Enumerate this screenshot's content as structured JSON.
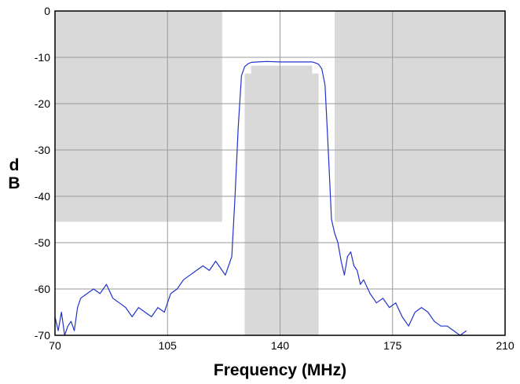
{
  "chart_data": {
    "type": "line",
    "title": "",
    "xlabel": "Frequency (MHz)",
    "ylabel_lines": [
      "d",
      "B"
    ],
    "xlim": [
      70,
      210
    ],
    "ylim": [
      -70,
      0
    ],
    "grid": true,
    "x_ticks": [
      70,
      105,
      140,
      175,
      210
    ],
    "y_ticks": [
      0,
      -10,
      -20,
      -30,
      -40,
      -50,
      -60,
      -70
    ],
    "colors": {
      "trace": "#2233cc",
      "mask": "#d9d9d9",
      "grid": "#9a9a9a",
      "frame": "#000000"
    },
    "mask_regions": [
      {
        "name": "lower-stopband-mask",
        "x": [
          70,
          122
        ],
        "y": [
          -45.5,
          0
        ]
      },
      {
        "name": "upper-stopband-mask",
        "x": [
          157,
          210
        ],
        "y": [
          -45.5,
          0
        ]
      },
      {
        "name": "passband-mask",
        "x": [
          131,
          150
        ],
        "y": [
          -70,
          -11.8
        ]
      },
      {
        "name": "passband-mask-step",
        "x": [
          129,
          152
        ],
        "y": [
          -70,
          -13.5
        ]
      }
    ],
    "series": [
      {
        "x": [
          70,
          71,
          72,
          73,
          74,
          75,
          76,
          77,
          78,
          80,
          82,
          84,
          86,
          88,
          90,
          92,
          94,
          96,
          98,
          100,
          102,
          104,
          106,
          108,
          110,
          112,
          114,
          116,
          118,
          120,
          121,
          122,
          123,
          124,
          125,
          126,
          127,
          128,
          129,
          130,
          131,
          133,
          136,
          140,
          144,
          148,
          150,
          151,
          152,
          153,
          154,
          155,
          156,
          157,
          158,
          159,
          160,
          161,
          162,
          163,
          164,
          165,
          166,
          168,
          170,
          172,
          174,
          176,
          178,
          180,
          182,
          184,
          186,
          188,
          190,
          192,
          194,
          196,
          198
        ],
        "values": [
          -66,
          -69,
          -65,
          -70,
          -68,
          -67,
          -69,
          -64,
          -62,
          -61,
          -60,
          -61,
          -59,
          -62,
          -63,
          -64,
          -66,
          -64,
          -65,
          -66,
          -64,
          -65,
          -61,
          -60,
          -58,
          -57,
          -56,
          -55,
          -56,
          -54,
          -55,
          -56,
          -57,
          -55,
          -53,
          -40,
          -25,
          -14,
          -12,
          -11.4,
          -11.1,
          -11,
          -10.9,
          -11,
          -11,
          -11,
          -11,
          -11.2,
          -11.5,
          -12.5,
          -16,
          -30,
          -45,
          -48,
          -50,
          -54,
          -57,
          -53,
          -52,
          -55,
          -56,
          -59,
          -58,
          -61,
          -63,
          -62,
          -64,
          -63,
          -66,
          -68,
          -65,
          -64,
          -65,
          -67,
          -68,
          -68,
          -69,
          -70,
          -69
        ]
      }
    ]
  }
}
